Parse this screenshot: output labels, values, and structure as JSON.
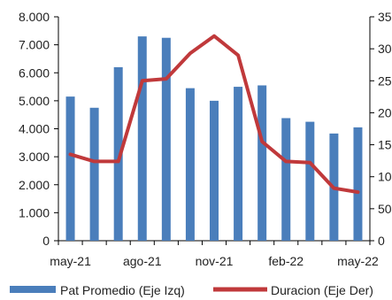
{
  "chart_data": {
    "type": "bar",
    "categories": [
      "may-21",
      "jun-21",
      "jul-21",
      "ago-21",
      "sep-21",
      "oct-21",
      "nov-21",
      "dic-21",
      "ene-22",
      "feb-22",
      "mar-22",
      "abr-22",
      "may-22"
    ],
    "x_tick_labels": [
      "may-21",
      "ago-21",
      "nov-21",
      "feb-22",
      "may-22"
    ],
    "x_tick_indices": [
      0,
      3,
      6,
      9,
      12
    ],
    "series": [
      {
        "name": "Pat Promedio (Eje Izq)",
        "type": "bar",
        "axis": "left",
        "color": "#4a7ebb",
        "values": [
          5150,
          4750,
          6200,
          7300,
          7250,
          5450,
          5000,
          5500,
          5550,
          4380,
          4250,
          3830,
          4050
        ]
      },
      {
        "name": "Duracion (Eje Der)",
        "type": "line",
        "axis": "right",
        "color": "#c0393b",
        "values": [
          135,
          124,
          124,
          250,
          253,
          293,
          320,
          290,
          155,
          124,
          122,
          82,
          76
        ]
      }
    ],
    "y_left": {
      "ylim": [
        0,
        8000
      ],
      "ticks": [
        0,
        1000,
        2000,
        3000,
        4000,
        5000,
        6000,
        7000,
        8000
      ],
      "tick_labels": [
        "0",
        "1.000",
        "2.000",
        "3.000",
        "4.000",
        "5.000",
        "6.000",
        "7.000",
        "8.000"
      ]
    },
    "y_right": {
      "ylim": [
        0,
        350
      ],
      "ticks": [
        0,
        50,
        100,
        150,
        200,
        250,
        300,
        350
      ],
      "tick_labels": [
        "0",
        "50",
        "100",
        "150",
        "200",
        "250",
        "300",
        "350"
      ]
    },
    "grid": false,
    "legend": {
      "position": "bottom",
      "entries": [
        "Pat Promedio (Eje Izq)",
        "Duracion (Eje Der)"
      ]
    }
  }
}
